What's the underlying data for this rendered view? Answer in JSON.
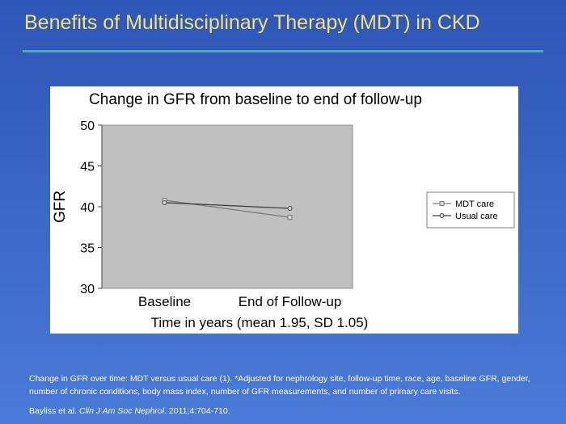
{
  "slide": {
    "title": "Benefits of Multidisciplinary Therapy (MDT) in CKD",
    "caption": "Change in GFR over time: MDT versus usual care (1). *Adjusted for nephrology site, follow-up time, race, age, baseline GFR, gender, number of chronic conditions, body mass index, number of GFR measurements, and number of primary care visits.",
    "citation": {
      "authors": "Bayliss et al. ",
      "journal": "Clin J Am Soc Nephrol",
      "details": ". 2011;4:704-710."
    }
  },
  "colors": {
    "title": "#f2e27a",
    "rule": "#3fb0b8",
    "plot_area": "#c0c0c0",
    "mdt_series": "#7a7a7a",
    "usual_series": "#3f3f3f"
  },
  "chart_data": {
    "type": "line",
    "title": "Change in GFR from baseline to end of follow-up",
    "xlabel": "Time in years (mean 1.95, SD 1.05)",
    "ylabel": "GFR",
    "categories": [
      "Baseline",
      "End of Follow-up"
    ],
    "ylim": [
      30,
      50
    ],
    "yticks": [
      30,
      35,
      40,
      45,
      50
    ],
    "grid": false,
    "legend_position": "right",
    "series": [
      {
        "name": "MDT care",
        "marker": "square",
        "values": [
          40.8,
          38.7
        ]
      },
      {
        "name": "Usual care",
        "marker": "circle",
        "values": [
          40.5,
          39.8
        ]
      }
    ]
  }
}
